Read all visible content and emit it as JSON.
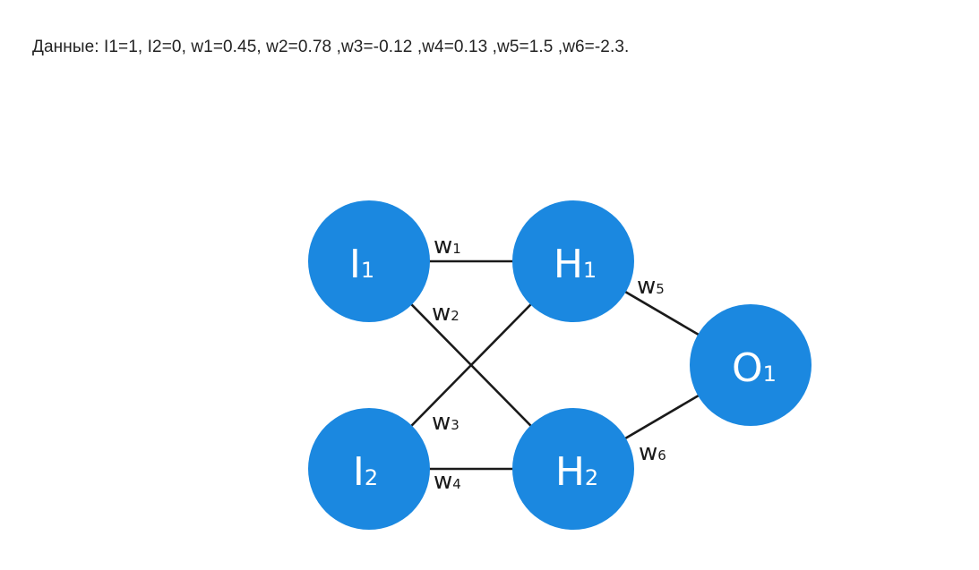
{
  "given": "Данные: I1=1, I2=0, w1=0.45, w2=0.78 ,w3=-0.12 ,w4=0.13 ,w5=1.5 ,w6=-2.3.",
  "colors": {
    "node_fill": "#1b88e0",
    "edge": "#1a1a1a",
    "text": "#222222"
  },
  "nodes": {
    "i1": {
      "main": "I",
      "sub": "1"
    },
    "i2": {
      "main": "I",
      "sub": "2"
    },
    "h1": {
      "main": "H",
      "sub": "1"
    },
    "h2": {
      "main": "H",
      "sub": "2"
    },
    "o1": {
      "main": "O",
      "sub": "1"
    }
  },
  "weights": {
    "w1": {
      "main": "w",
      "sub": "1"
    },
    "w2": {
      "main": "w",
      "sub": "2"
    },
    "w3": {
      "main": "w",
      "sub": "3"
    },
    "w4": {
      "main": "w",
      "sub": "4"
    },
    "w5": {
      "main": "w",
      "sub": "5"
    },
    "w6": {
      "main": "w",
      "sub": "6"
    }
  }
}
